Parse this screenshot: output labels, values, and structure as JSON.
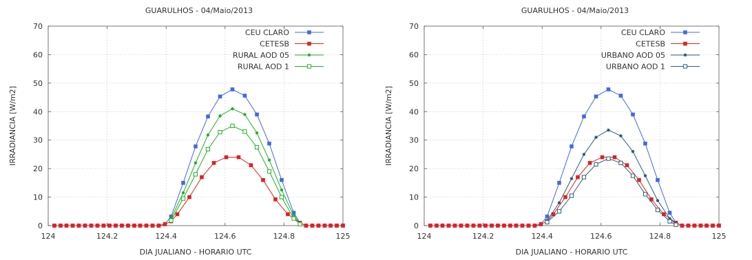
{
  "chart_data": [
    {
      "type": "line",
      "title": "GUARULHOS - 04/Maio/2013",
      "xlabel": "DIA JUALIANO - HORARIO UTC",
      "ylabel": "IRRADIANCIA [W/m2]",
      "xlim": [
        124,
        125
      ],
      "ylim": [
        0,
        70
      ],
      "xticks": [
        124,
        124.2,
        124.4,
        124.6,
        124.8,
        125
      ],
      "xtick_labels": [
        "124",
        "124.2",
        "124.4",
        "124.6",
        "124.8",
        "125"
      ],
      "yticks": [
        0,
        10,
        20,
        30,
        40,
        50,
        60,
        70
      ],
      "ytick_labels": [
        "0",
        "10",
        "20",
        "30",
        "40",
        "50",
        "60",
        "70"
      ],
      "grid": true,
      "legend_position": "top-right",
      "series": [
        {
          "name": "CEU CLARO",
          "color": "#4169e1",
          "marker": "filled-square",
          "points": [
            [
              124.021,
              0
            ],
            [
              124.042,
              0
            ],
            [
              124.062,
              0
            ],
            [
              124.083,
              0
            ],
            [
              124.104,
              0
            ],
            [
              124.125,
              0
            ],
            [
              124.146,
              0
            ],
            [
              124.167,
              0
            ],
            [
              124.188,
              0
            ],
            [
              124.208,
              0
            ],
            [
              124.229,
              0
            ],
            [
              124.25,
              0
            ],
            [
              124.271,
              0
            ],
            [
              124.292,
              0
            ],
            [
              124.312,
              0
            ],
            [
              124.333,
              0
            ],
            [
              124.354,
              0
            ],
            [
              124.375,
              0
            ],
            [
              124.396,
              0.5
            ],
            [
              124.417,
              3.2
            ],
            [
              124.458,
              15
            ],
            [
              124.5,
              27.8
            ],
            [
              124.542,
              38.3
            ],
            [
              124.583,
              45.3
            ],
            [
              124.625,
              47.8
            ],
            [
              124.667,
              45.6
            ],
            [
              124.708,
              39
            ],
            [
              124.75,
              28.8
            ],
            [
              124.792,
              16
            ],
            [
              124.833,
              4.5
            ],
            [
              124.854,
              1
            ],
            [
              124.875,
              0
            ],
            [
              124.896,
              0
            ],
            [
              124.917,
              0
            ],
            [
              124.938,
              0
            ],
            [
              124.958,
              0
            ],
            [
              124.979,
              0
            ],
            [
              125,
              0
            ]
          ]
        },
        {
          "name": "CETESB",
          "color": "#e02020",
          "marker": "filled-square",
          "points": [
            [
              124.021,
              0
            ],
            [
              124.042,
              0
            ],
            [
              124.062,
              0
            ],
            [
              124.083,
              0
            ],
            [
              124.104,
              0
            ],
            [
              124.125,
              0
            ],
            [
              124.146,
              0
            ],
            [
              124.167,
              0
            ],
            [
              124.188,
              0
            ],
            [
              124.208,
              0
            ],
            [
              124.229,
              0
            ],
            [
              124.25,
              0
            ],
            [
              124.271,
              0
            ],
            [
              124.292,
              0
            ],
            [
              124.312,
              0
            ],
            [
              124.333,
              0
            ],
            [
              124.354,
              0
            ],
            [
              124.375,
              0
            ],
            [
              124.396,
              0.5
            ],
            [
              124.417,
              1.5
            ],
            [
              124.438,
              4
            ],
            [
              124.479,
              10
            ],
            [
              124.521,
              17
            ],
            [
              124.562,
              22
            ],
            [
              124.604,
              24
            ],
            [
              124.646,
              24
            ],
            [
              124.688,
              21.2
            ],
            [
              124.729,
              16
            ],
            [
              124.771,
              9.2
            ],
            [
              124.813,
              4
            ],
            [
              124.854,
              1
            ],
            [
              124.875,
              0
            ],
            [
              124.896,
              0
            ],
            [
              124.917,
              0
            ],
            [
              124.938,
              0
            ],
            [
              124.958,
              0
            ],
            [
              124.979,
              0
            ],
            [
              125,
              0
            ]
          ]
        },
        {
          "name": "RURAL AOD 05",
          "color": "#22b022",
          "marker": "filled-circle",
          "points": [
            [
              124.417,
              2.5
            ],
            [
              124.458,
              11.5
            ],
            [
              124.5,
              22
            ],
            [
              124.542,
              31.8
            ],
            [
              124.583,
              38.5
            ],
            [
              124.625,
              41
            ],
            [
              124.667,
              39
            ],
            [
              124.708,
              32.5
            ],
            [
              124.75,
              23
            ],
            [
              124.792,
              12.5
            ],
            [
              124.833,
              3.5
            ],
            [
              124.854,
              0.8
            ]
          ]
        },
        {
          "name": "RURAL AOD 1",
          "color": "#22b022",
          "marker": "open-square",
          "points": [
            [
              124.417,
              1.8
            ],
            [
              124.458,
              9.5
            ],
            [
              124.5,
              18
            ],
            [
              124.542,
              26.8
            ],
            [
              124.583,
              32.8
            ],
            [
              124.625,
              35
            ],
            [
              124.667,
              33
            ],
            [
              124.708,
              27.5
            ],
            [
              124.75,
              19
            ],
            [
              124.792,
              10
            ],
            [
              124.833,
              2.5
            ],
            [
              124.854,
              0.5
            ]
          ]
        }
      ]
    },
    {
      "type": "line",
      "title": "GUARULHOS - 04/Maio/2013",
      "xlabel": "DIA JUALIANO - HORARIO UTC",
      "ylabel": "IRRADIANCIA [W/m2]",
      "xlim": [
        124,
        125
      ],
      "ylim": [
        0,
        70
      ],
      "xticks": [
        124,
        124.2,
        124.4,
        124.6,
        124.8,
        125
      ],
      "xtick_labels": [
        "124",
        "124.2",
        "124.4",
        "124.6",
        "124.8",
        "125"
      ],
      "yticks": [
        0,
        10,
        20,
        30,
        40,
        50,
        60,
        70
      ],
      "ytick_labels": [
        "0",
        "10",
        "20",
        "30",
        "40",
        "50",
        "60",
        "70"
      ],
      "grid": true,
      "legend_position": "top-right",
      "series": [
        {
          "name": "CEU CLARO",
          "color": "#4169e1",
          "marker": "filled-square",
          "points": [
            [
              124.021,
              0
            ],
            [
              124.042,
              0
            ],
            [
              124.062,
              0
            ],
            [
              124.083,
              0
            ],
            [
              124.104,
              0
            ],
            [
              124.125,
              0
            ],
            [
              124.146,
              0
            ],
            [
              124.167,
              0
            ],
            [
              124.188,
              0
            ],
            [
              124.208,
              0
            ],
            [
              124.229,
              0
            ],
            [
              124.25,
              0
            ],
            [
              124.271,
              0
            ],
            [
              124.292,
              0
            ],
            [
              124.312,
              0
            ],
            [
              124.333,
              0
            ],
            [
              124.354,
              0
            ],
            [
              124.375,
              0
            ],
            [
              124.396,
              0.5
            ],
            [
              124.417,
              3.2
            ],
            [
              124.458,
              15
            ],
            [
              124.5,
              27.8
            ],
            [
              124.542,
              38.3
            ],
            [
              124.583,
              45.3
            ],
            [
              124.625,
              47.8
            ],
            [
              124.667,
              45.6
            ],
            [
              124.708,
              39
            ],
            [
              124.75,
              28.8
            ],
            [
              124.792,
              16
            ],
            [
              124.833,
              4.5
            ],
            [
              124.854,
              1
            ],
            [
              124.875,
              0
            ],
            [
              124.896,
              0
            ],
            [
              124.917,
              0
            ],
            [
              124.938,
              0
            ],
            [
              124.958,
              0
            ],
            [
              124.979,
              0
            ],
            [
              125,
              0
            ]
          ]
        },
        {
          "name": "CETESB",
          "color": "#e02020",
          "marker": "filled-square",
          "points": [
            [
              124.021,
              0
            ],
            [
              124.042,
              0
            ],
            [
              124.062,
              0
            ],
            [
              124.083,
              0
            ],
            [
              124.104,
              0
            ],
            [
              124.125,
              0
            ],
            [
              124.146,
              0
            ],
            [
              124.167,
              0
            ],
            [
              124.188,
              0
            ],
            [
              124.208,
              0
            ],
            [
              124.229,
              0
            ],
            [
              124.25,
              0
            ],
            [
              124.271,
              0
            ],
            [
              124.292,
              0
            ],
            [
              124.312,
              0
            ],
            [
              124.333,
              0
            ],
            [
              124.354,
              0
            ],
            [
              124.375,
              0
            ],
            [
              124.396,
              0.5
            ],
            [
              124.417,
              1.5
            ],
            [
              124.438,
              4
            ],
            [
              124.479,
              10
            ],
            [
              124.521,
              17
            ],
            [
              124.562,
              22
            ],
            [
              124.604,
              24
            ],
            [
              124.646,
              24
            ],
            [
              124.688,
              21.2
            ],
            [
              124.729,
              16
            ],
            [
              124.771,
              9.2
            ],
            [
              124.813,
              4
            ],
            [
              124.854,
              1
            ],
            [
              124.875,
              0
            ],
            [
              124.896,
              0
            ],
            [
              124.917,
              0
            ],
            [
              124.938,
              0
            ],
            [
              124.958,
              0
            ],
            [
              124.979,
              0
            ],
            [
              125,
              0
            ]
          ]
        },
        {
          "name": "URBANO AOD 05",
          "color": "#2a5d78",
          "marker": "filled-circle",
          "points": [
            [
              124.417,
              1.8
            ],
            [
              124.458,
              8
            ],
            [
              124.5,
              16.5
            ],
            [
              124.542,
              25
            ],
            [
              124.583,
              31
            ],
            [
              124.625,
              33.5
            ],
            [
              124.667,
              31.5
            ],
            [
              124.708,
              26
            ],
            [
              124.75,
              17.5
            ],
            [
              124.792,
              8.8
            ],
            [
              124.833,
              2.5
            ],
            [
              124.854,
              0.5
            ]
          ]
        },
        {
          "name": "URBANO AOD 1",
          "color": "#2a5d78",
          "marker": "open-square",
          "points": [
            [
              124.417,
              1.2
            ],
            [
              124.458,
              5
            ],
            [
              124.5,
              10.5
            ],
            [
              124.542,
              17
            ],
            [
              124.583,
              21.5
            ],
            [
              124.625,
              23.5
            ],
            [
              124.667,
              22
            ],
            [
              124.708,
              17.5
            ],
            [
              124.75,
              11
            ],
            [
              124.792,
              5.5
            ],
            [
              124.833,
              1.5
            ],
            [
              124.854,
              0.3
            ]
          ]
        }
      ]
    }
  ]
}
